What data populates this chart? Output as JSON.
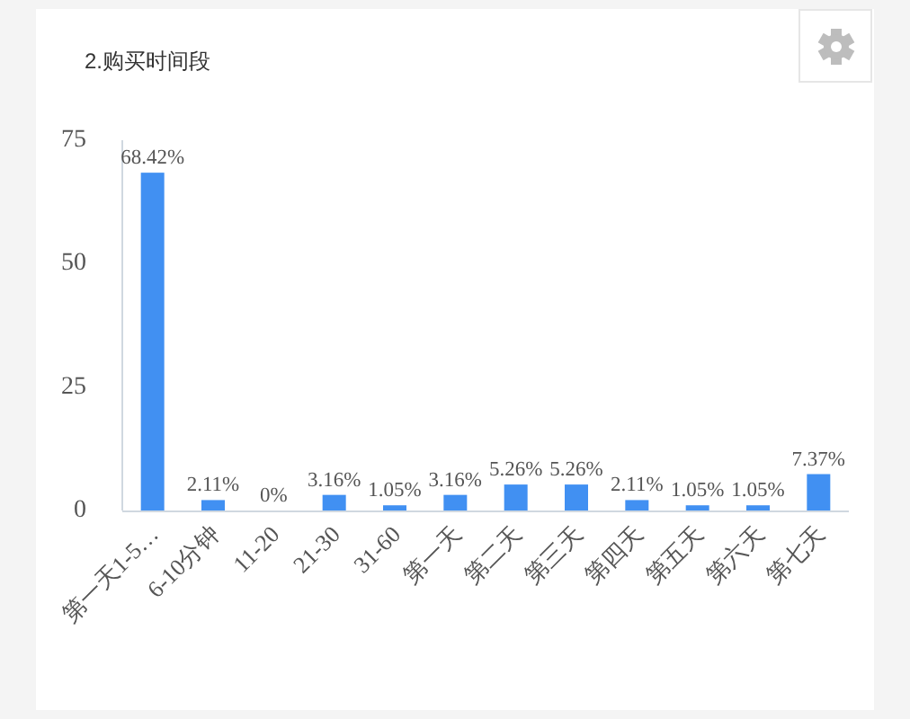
{
  "chart_data": {
    "type": "bar",
    "title": "2.购买时间段",
    "categories": [
      "第一天1-5…",
      "6-10分钟",
      "11-20",
      "21-30",
      "31-60",
      "第一天",
      "第二天",
      "第三天",
      "第四天",
      "第五天",
      "第六天",
      "第七天"
    ],
    "values": [
      68.42,
      2.11,
      0,
      3.16,
      1.05,
      3.16,
      5.26,
      5.26,
      2.11,
      1.05,
      1.05,
      7.37
    ],
    "value_labels": [
      "68.42%",
      "2.11%",
      "0%",
      "3.16%",
      "1.05%",
      "3.16%",
      "5.26%",
      "5.26%",
      "2.11%",
      "1.05%",
      "1.05%",
      "7.37%"
    ],
    "color": "#4190f2",
    "ylim": [
      0,
      75
    ],
    "yticks": [
      0,
      25,
      50,
      75
    ]
  }
}
